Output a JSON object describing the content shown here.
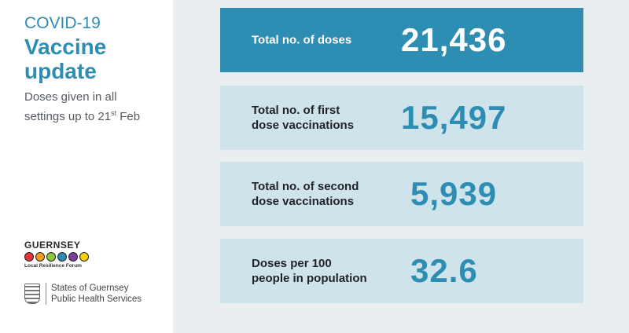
{
  "sidebar": {
    "kicker": "COVID-19",
    "headline": "Vaccine update",
    "subtext_main": "Doses given in all settings up to 21",
    "subtext_sup": "st",
    "subtext_end": " Feb",
    "logo_forum_word": "GUERNSEY",
    "logo_forum_tag": "Local Resilience Forum",
    "logo_forum_dot_colors": [
      "#e2323a",
      "#f39b1f",
      "#8dc63f",
      "#2e8db3",
      "#7b3fa0",
      "#f5d20a"
    ],
    "logo_states_line1": "States of Guernsey",
    "logo_states_line2": "Public Health Services"
  },
  "stats": [
    {
      "label": "Total no. of doses",
      "value": "21,436"
    },
    {
      "label": "Total no. of first\ndose vaccinations",
      "value": "15,497"
    },
    {
      "label": "Total no. of second\ndose vaccinations",
      "value": "5,939"
    },
    {
      "label": "Doses per 100\npeople in population",
      "value": "32.6"
    }
  ]
}
